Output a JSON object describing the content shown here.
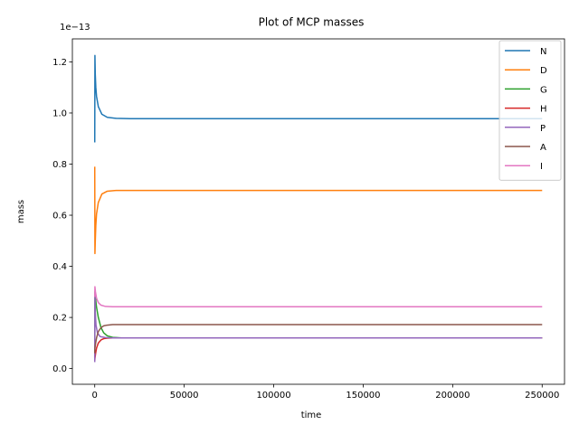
{
  "chart_data": {
    "type": "line",
    "title": "Plot of MCP masses",
    "xlabel": "time",
    "ylabel": "mass",
    "y_offset_text": "1e−13",
    "xlim": [
      -12500,
      262500
    ],
    "ylim": [
      -0.0615,
      1.29
    ],
    "grid": false,
    "legend_position": "top-right",
    "x_ticks": [
      0,
      50000,
      100000,
      150000,
      200000,
      250000
    ],
    "x_tick_labels": [
      "0",
      "50000",
      "100000",
      "150000",
      "200000",
      "250000"
    ],
    "y_ticks": [
      0.0,
      0.2,
      0.4,
      0.6,
      0.8,
      1.0,
      1.2
    ],
    "y_tick_labels": [
      "0.0",
      "0.2",
      "0.4",
      "0.6",
      "0.8",
      "1.0",
      "1.2"
    ],
    "series": [
      {
        "name": "N",
        "color": "#1f77b4",
        "x": [
          0,
          100,
          300,
          600,
          1000,
          2000,
          4000,
          7000,
          12000,
          20000,
          50000,
          100000,
          150000,
          200000,
          250000
        ],
        "y": [
          0.885,
          1.225,
          1.15,
          1.1,
          1.065,
          1.025,
          0.995,
          0.983,
          0.979,
          0.978,
          0.978,
          0.978,
          0.978,
          0.978,
          0.978
        ]
      },
      {
        "name": "D",
        "color": "#ff7f0e",
        "x": [
          0,
          100,
          300,
          600,
          1000,
          2000,
          4000,
          7000,
          12000,
          20000,
          50000,
          100000,
          150000,
          200000,
          250000
        ],
        "y": [
          0.79,
          0.45,
          0.5,
          0.56,
          0.605,
          0.65,
          0.683,
          0.694,
          0.697,
          0.697,
          0.697,
          0.697,
          0.697,
          0.697,
          0.697
        ]
      },
      {
        "name": "G",
        "color": "#2ca02c",
        "x": [
          0,
          100,
          500,
          1000,
          2000,
          3500,
          5000,
          7000,
          10000,
          15000,
          50000,
          100000,
          150000,
          200000,
          250000
        ],
        "y": [
          0.04,
          0.3,
          0.27,
          0.24,
          0.2,
          0.16,
          0.14,
          0.128,
          0.122,
          0.12,
          0.12,
          0.12,
          0.12,
          0.12,
          0.12
        ]
      },
      {
        "name": "H",
        "color": "#d62728",
        "x": [
          0,
          100,
          500,
          1000,
          2000,
          3500,
          5000,
          7000,
          10000,
          15000,
          50000,
          100000,
          150000,
          200000,
          250000
        ],
        "y": [
          0.03,
          0.04,
          0.06,
          0.08,
          0.1,
          0.112,
          0.117,
          0.119,
          0.12,
          0.12,
          0.12,
          0.12,
          0.12,
          0.12,
          0.12
        ]
      },
      {
        "name": "P",
        "color": "#9467bd",
        "x": [
          0,
          100,
          300,
          700,
          1500,
          3000,
          6000,
          10000,
          20000,
          50000,
          100000,
          150000,
          200000,
          250000
        ],
        "y": [
          0.025,
          0.29,
          0.22,
          0.17,
          0.14,
          0.125,
          0.121,
          0.12,
          0.12,
          0.12,
          0.12,
          0.12,
          0.12,
          0.12
        ]
      },
      {
        "name": "A",
        "color": "#8c564b",
        "x": [
          0,
          100,
          500,
          1000,
          2000,
          3500,
          5000,
          7000,
          10000,
          15000,
          50000,
          100000,
          150000,
          200000,
          250000
        ],
        "y": [
          0.06,
          0.08,
          0.1,
          0.12,
          0.145,
          0.16,
          0.167,
          0.17,
          0.172,
          0.172,
          0.172,
          0.172,
          0.172,
          0.172,
          0.172
        ]
      },
      {
        "name": "I",
        "color": "#e377c2",
        "x": [
          0,
          100,
          400,
          1000,
          2000,
          3500,
          6000,
          10000,
          20000,
          50000,
          100000,
          150000,
          200000,
          250000
        ],
        "y": [
          0.28,
          0.32,
          0.3,
          0.275,
          0.258,
          0.248,
          0.243,
          0.242,
          0.242,
          0.242,
          0.242,
          0.242,
          0.242,
          0.242
        ]
      }
    ]
  }
}
